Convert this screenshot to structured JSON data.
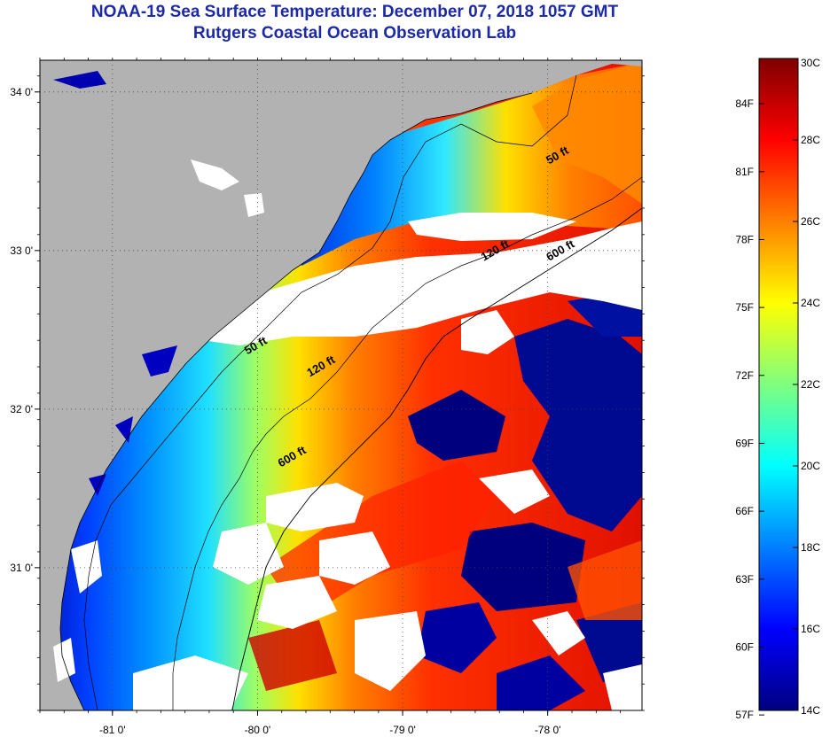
{
  "title": {
    "line1": "NOAA-19 Sea Surface Temperature:  December 07, 2018 1057 GMT",
    "line2": "Rutgers Coastal Ocean Observation Lab"
  },
  "map": {
    "lon_range": [
      -81.5,
      -77.35
    ],
    "lat_range": [
      30.1,
      34.2
    ],
    "lon_ticks": [
      {
        "value": -81,
        "label": "-81 0'"
      },
      {
        "value": -80,
        "label": "-80 0'"
      },
      {
        "value": -79,
        "label": "-79 0'"
      },
      {
        "value": -78,
        "label": "-78 0'"
      }
    ],
    "lat_ticks": [
      {
        "value": 34,
        "label": "34 0'"
      },
      {
        "value": 33,
        "label": "33 0'"
      },
      {
        "value": 32,
        "label": "32 0'"
      },
      {
        "value": 31,
        "label": "31 0'"
      }
    ],
    "contour_labels": [
      {
        "text": "50 ft",
        "lon": -77.92,
        "lat": 33.58
      },
      {
        "text": "120 ft",
        "lon": -78.35,
        "lat": 32.98
      },
      {
        "text": "600 ft",
        "lon": -77.9,
        "lat": 32.98
      },
      {
        "text": "50 ft",
        "lon": -80.0,
        "lat": 32.38
      },
      {
        "text": "120 ft",
        "lon": -79.55,
        "lat": 32.25
      },
      {
        "text": "600 ft",
        "lon": -79.75,
        "lat": 31.68
      }
    ],
    "colors": {
      "land": "#b2b2b2",
      "cloud": "#ffffff",
      "grid": "#444444"
    }
  },
  "colorbar": {
    "min_c": 14,
    "max_c": 30,
    "celsius_ticks": [
      {
        "value": 30,
        "label": "30C"
      },
      {
        "value": 28,
        "label": "28C"
      },
      {
        "value": 26,
        "label": "26C"
      },
      {
        "value": 24,
        "label": "24C"
      },
      {
        "value": 22,
        "label": "22C"
      },
      {
        "value": 20,
        "label": "20C"
      },
      {
        "value": 18,
        "label": "18C"
      },
      {
        "value": 16,
        "label": "16C"
      },
      {
        "value": 14,
        "label": "14C"
      }
    ],
    "fahrenheit_ticks": [
      {
        "value": 84,
        "label": "84F"
      },
      {
        "value": 81,
        "label": "81F"
      },
      {
        "value": 78,
        "label": "78F"
      },
      {
        "value": 75,
        "label": "75F"
      },
      {
        "value": 72,
        "label": "72F"
      },
      {
        "value": 69,
        "label": "69F"
      },
      {
        "value": 66,
        "label": "66F"
      },
      {
        "value": 63,
        "label": "63F"
      },
      {
        "value": 60,
        "label": "60F"
      },
      {
        "value": 57,
        "label": "57F"
      }
    ],
    "stops": [
      "#00007f",
      "#0000ff",
      "#007fff",
      "#00ffff",
      "#7fff7f",
      "#ffff00",
      "#ff7f00",
      "#ff0000",
      "#7f0000"
    ]
  }
}
